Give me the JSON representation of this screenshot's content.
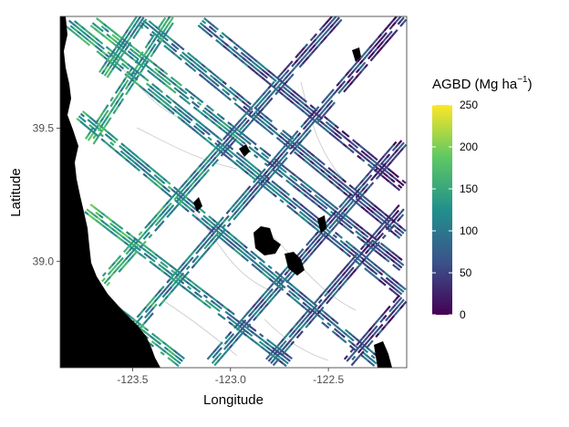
{
  "chart_data": {
    "type": "heatmap",
    "title": "",
    "xlabel": "Longitude",
    "ylabel": "Latitude",
    "xlim": [
      -123.87,
      -122.1
    ],
    "ylim": [
      38.6,
      39.92
    ],
    "x_ticks": [
      -123.5,
      -123.0,
      -122.5
    ],
    "x_tick_labels": [
      "-123.5",
      "-123.0",
      "-122.5"
    ],
    "y_ticks": [
      39.0,
      39.5
    ],
    "y_tick_labels": [
      "39.0",
      "39.5"
    ],
    "grid": false,
    "legend": {
      "title_main": "AGBD",
      "title_units": "(Mg ha",
      "title_exp": "−1",
      "title_close": ")",
      "placement": "right",
      "colormap": "viridis",
      "range": [
        0,
        250
      ],
      "ticks": [
        0,
        50,
        100,
        150,
        200,
        250
      ],
      "tick_labels": [
        "0",
        "50",
        "100",
        "150",
        "200",
        "250"
      ]
    },
    "colors": [
      "#440154",
      "#3b528b",
      "#21908c",
      "#5dc863",
      "#fde725"
    ],
    "tracks": [
      {
        "from": [
          -123.83,
          39.9
        ],
        "to": [
          -122.12,
          38.88
        ],
        "agbd": [
          140,
          60
        ]
      },
      {
        "from": [
          -123.7,
          39.9
        ],
        "to": [
          -122.12,
          38.98
        ],
        "agbd": [
          150,
          50
        ]
      },
      {
        "from": [
          -123.45,
          39.9
        ],
        "to": [
          -122.12,
          39.1
        ],
        "agbd": [
          110,
          40
        ]
      },
      {
        "from": [
          -123.15,
          39.9
        ],
        "to": [
          -122.12,
          39.28
        ],
        "agbd": [
          90,
          30
        ]
      },
      {
        "from": [
          -123.77,
          39.55
        ],
        "to": [
          -122.25,
          38.62
        ],
        "agbd": [
          140,
          70
        ]
      },
      {
        "from": [
          -123.73,
          39.2
        ],
        "to": [
          -122.7,
          38.62
        ],
        "agbd": [
          160,
          80
        ]
      },
      {
        "from": [
          -123.6,
          38.82
        ],
        "to": [
          -123.25,
          38.62
        ],
        "agbd": [
          150,
          120
        ]
      },
      {
        "from": [
          -123.65,
          38.92
        ],
        "to": [
          -122.45,
          39.92
        ],
        "agbd": [
          160,
          40
        ]
      },
      {
        "from": [
          -123.55,
          38.7
        ],
        "to": [
          -122.12,
          39.92
        ],
        "agbd": [
          130,
          30
        ]
      },
      {
        "from": [
          -123.1,
          38.62
        ],
        "to": [
          -122.12,
          39.45
        ],
        "agbd": [
          100,
          40
        ]
      },
      {
        "from": [
          -122.8,
          38.62
        ],
        "to": [
          -122.12,
          39.2
        ],
        "agbd": [
          90,
          40
        ]
      },
      {
        "from": [
          -123.72,
          39.45
        ],
        "to": [
          -123.3,
          39.92
        ],
        "agbd": [
          150,
          130
        ]
      },
      {
        "from": [
          -123.65,
          39.7
        ],
        "to": [
          -123.45,
          39.92
        ],
        "agbd": [
          140,
          120
        ]
      },
      {
        "from": [
          -122.4,
          38.62
        ],
        "to": [
          -122.12,
          38.86
        ],
        "agbd": [
          60,
          40
        ]
      }
    ]
  }
}
